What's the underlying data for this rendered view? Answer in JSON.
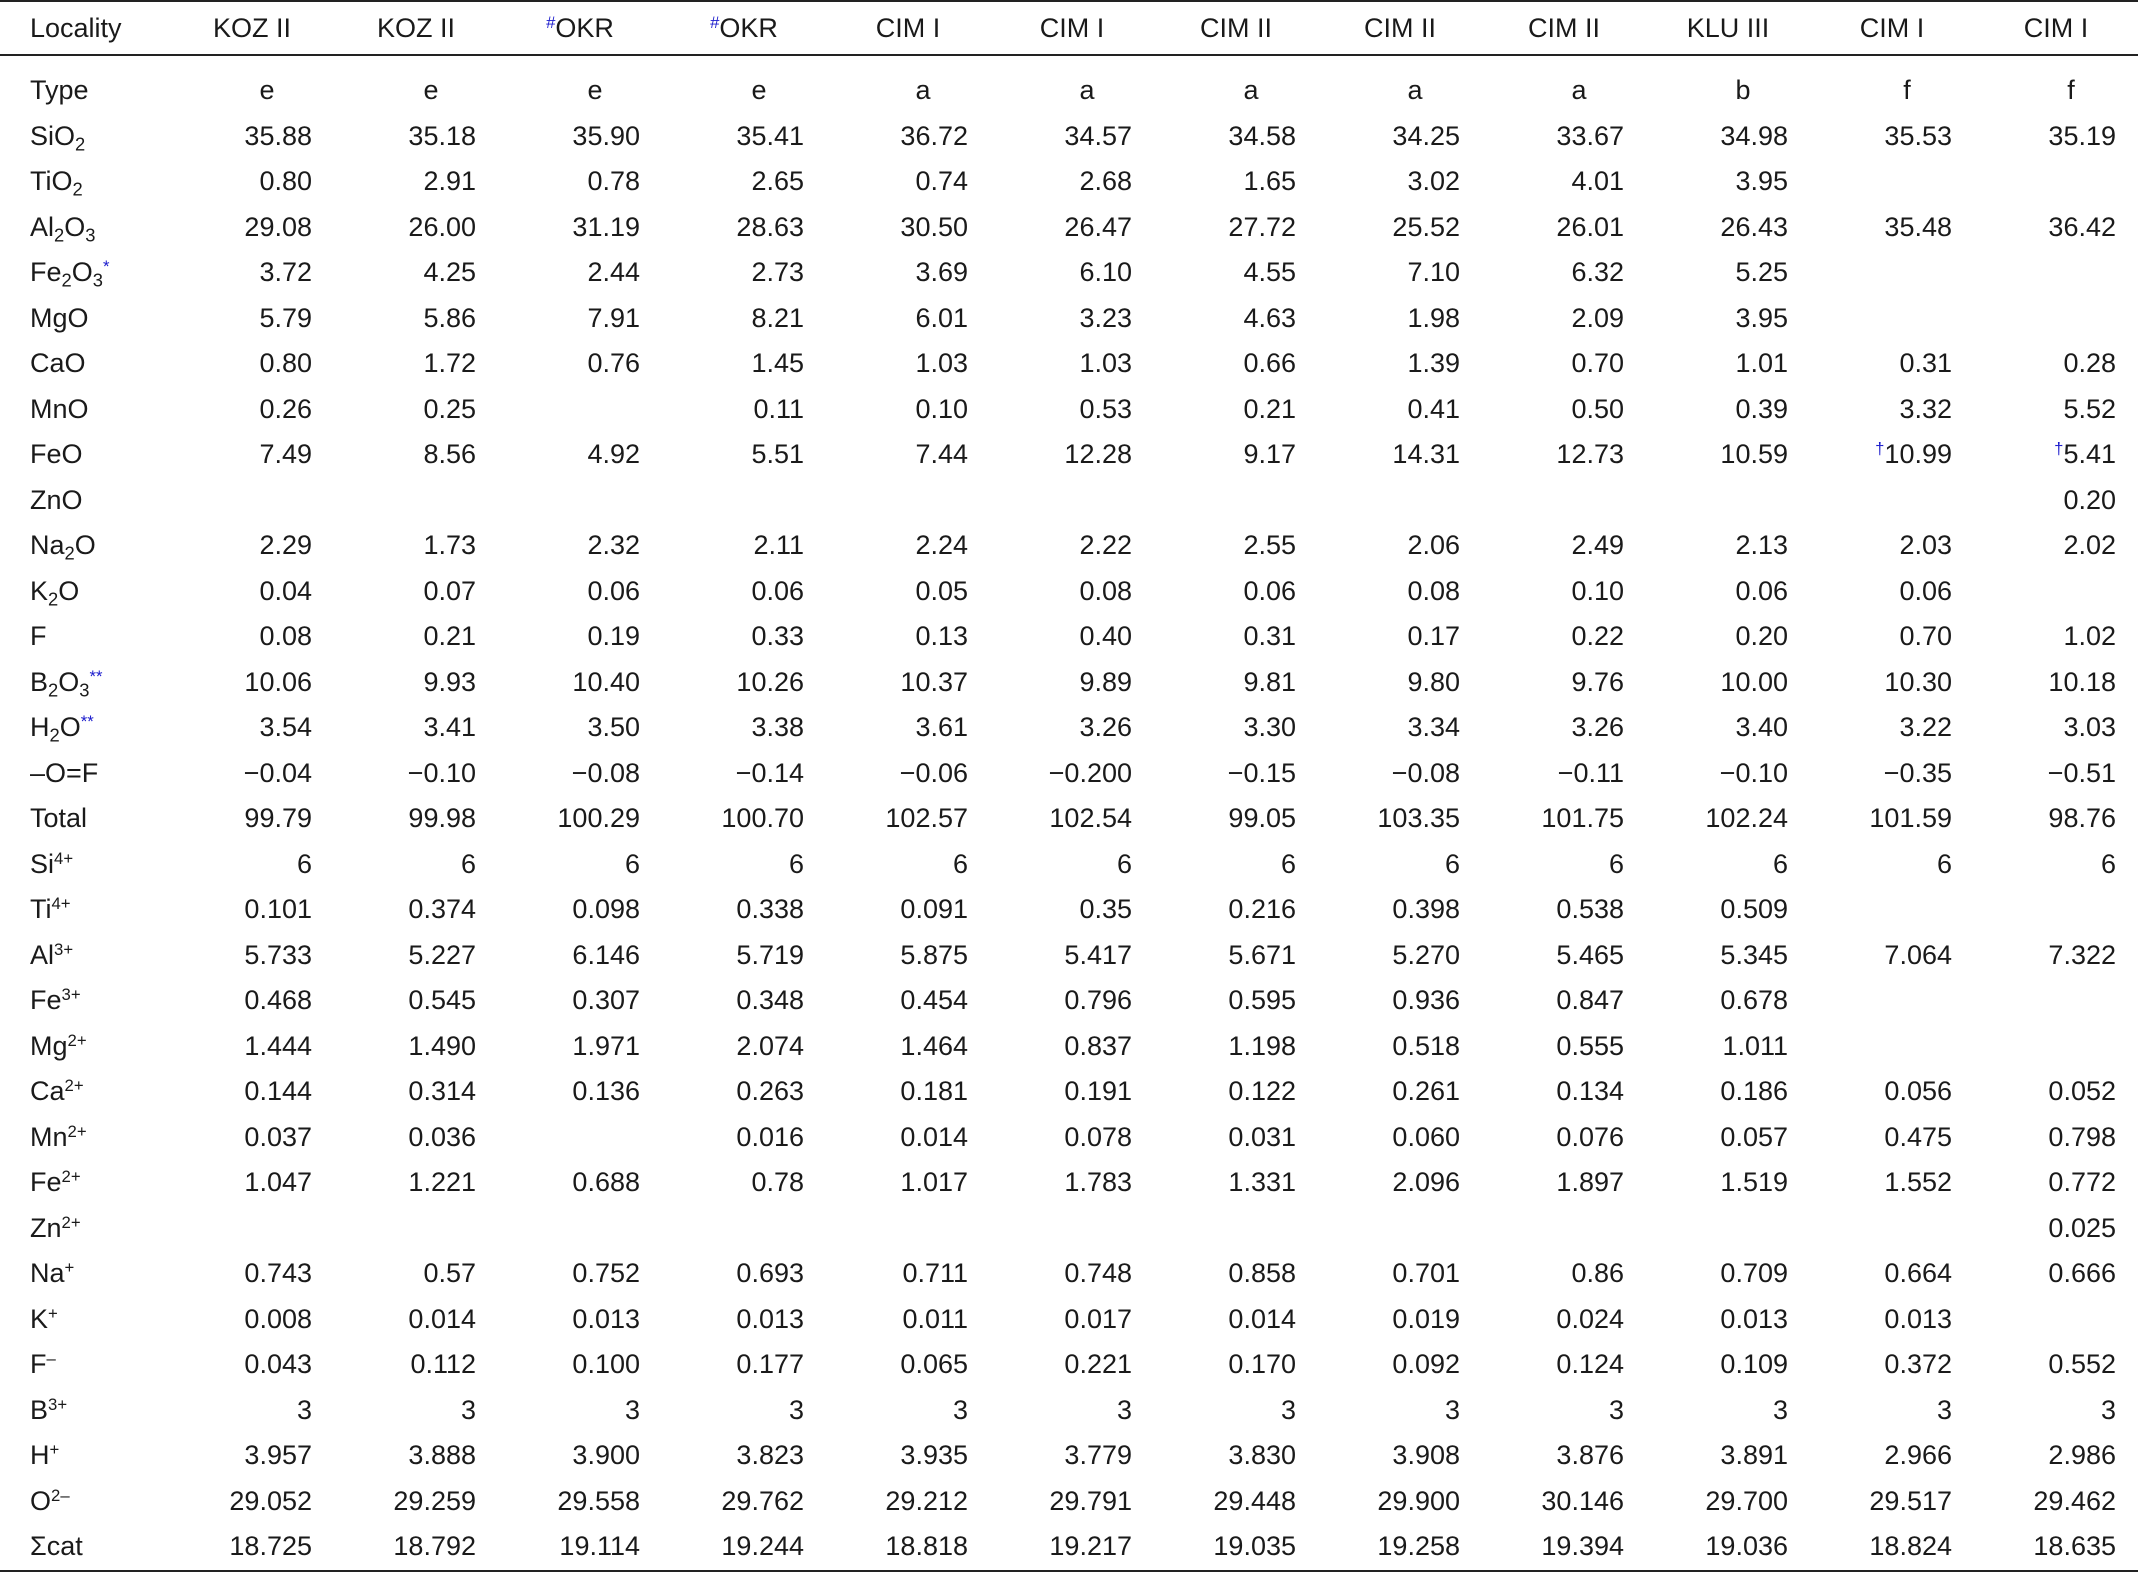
{
  "table": {
    "header_label": "Locality",
    "header_marker": "#",
    "value_marker": "†",
    "columns": [
      {
        "name": "KOZ II",
        "marked": false
      },
      {
        "name": "KOZ II",
        "marked": false
      },
      {
        "name": "OKR",
        "marked": true
      },
      {
        "name": "OKR",
        "marked": true
      },
      {
        "name": "CIM I",
        "marked": false
      },
      {
        "name": "CIM I",
        "marked": false
      },
      {
        "name": "CIM II",
        "marked": false
      },
      {
        "name": "CIM II",
        "marked": false
      },
      {
        "name": "CIM II",
        "marked": false
      },
      {
        "name": "KLU III",
        "marked": false
      },
      {
        "name": "CIM I",
        "marked": false
      },
      {
        "name": "CIM I",
        "marked": false
      }
    ],
    "rows": [
      {
        "label": [
          {
            "t": "Type"
          }
        ],
        "type": true,
        "values": [
          "e",
          "e",
          "e",
          "e",
          "a",
          "a",
          "a",
          "a",
          "a",
          "b",
          "f",
          "f"
        ]
      },
      {
        "label": [
          {
            "t": "SiO"
          },
          {
            "sub": "2"
          }
        ],
        "values": [
          "35.88",
          "35.18",
          "35.90",
          "35.41",
          "36.72",
          "34.57",
          "34.58",
          "34.25",
          "33.67",
          "34.98",
          "35.53",
          "35.19"
        ]
      },
      {
        "label": [
          {
            "t": "TiO"
          },
          {
            "sub": "2"
          }
        ],
        "values": [
          "0.80",
          "2.91",
          "0.78",
          "2.65",
          "0.74",
          "2.68",
          "1.65",
          "3.02",
          "4.01",
          "3.95",
          "",
          ""
        ]
      },
      {
        "label": [
          {
            "t": "Al"
          },
          {
            "sub": "2"
          },
          {
            "t": "O"
          },
          {
            "sub": "3"
          }
        ],
        "values": [
          "29.08",
          "26.00",
          "31.19",
          "28.63",
          "30.50",
          "26.47",
          "27.72",
          "25.52",
          "26.01",
          "26.43",
          "35.48",
          "36.42"
        ]
      },
      {
        "label": [
          {
            "t": "Fe"
          },
          {
            "sub": "2"
          },
          {
            "t": "O"
          },
          {
            "sub": "3"
          },
          {
            "mark": "*"
          }
        ],
        "values": [
          "3.72",
          "4.25",
          "2.44",
          "2.73",
          "3.69",
          "6.10",
          "4.55",
          "7.10",
          "6.32",
          "5.25",
          "",
          ""
        ]
      },
      {
        "label": [
          {
            "t": "MgO"
          }
        ],
        "values": [
          "5.79",
          "5.86",
          "7.91",
          "8.21",
          "6.01",
          "3.23",
          "4.63",
          "1.98",
          "2.09",
          "3.95",
          "",
          ""
        ]
      },
      {
        "label": [
          {
            "t": "CaO"
          }
        ],
        "values": [
          "0.80",
          "1.72",
          "0.76",
          "1.45",
          "1.03",
          "1.03",
          "0.66",
          "1.39",
          "0.70",
          "1.01",
          "0.31",
          "0.28"
        ]
      },
      {
        "label": [
          {
            "t": "MnO"
          }
        ],
        "values": [
          "0.26",
          "0.25",
          "",
          "0.11",
          "0.10",
          "0.53",
          "0.21",
          "0.41",
          "0.50",
          "0.39",
          "3.32",
          "5.52"
        ]
      },
      {
        "label": [
          {
            "t": "FeO"
          }
        ],
        "values": [
          "7.49",
          "8.56",
          "4.92",
          "5.51",
          "7.44",
          "12.28",
          "9.17",
          "14.31",
          "12.73",
          "10.59",
          "10.99",
          "5.41"
        ],
        "marked_cols": [
          10,
          11
        ]
      },
      {
        "label": [
          {
            "t": "ZnO"
          }
        ],
        "values": [
          "",
          "",
          "",
          "",
          "",
          "",
          "",
          "",
          "",
          "",
          "",
          "0.20"
        ]
      },
      {
        "label": [
          {
            "t": "Na"
          },
          {
            "sub": "2"
          },
          {
            "t": "O"
          }
        ],
        "values": [
          "2.29",
          "1.73",
          "2.32",
          "2.11",
          "2.24",
          "2.22",
          "2.55",
          "2.06",
          "2.49",
          "2.13",
          "2.03",
          "2.02"
        ]
      },
      {
        "label": [
          {
            "t": "K"
          },
          {
            "sub": "2"
          },
          {
            "t": "O"
          }
        ],
        "values": [
          "0.04",
          "0.07",
          "0.06",
          "0.06",
          "0.05",
          "0.08",
          "0.06",
          "0.08",
          "0.10",
          "0.06",
          "0.06",
          ""
        ]
      },
      {
        "label": [
          {
            "t": "F"
          }
        ],
        "values": [
          "0.08",
          "0.21",
          "0.19",
          "0.33",
          "0.13",
          "0.40",
          "0.31",
          "0.17",
          "0.22",
          "0.20",
          "0.70",
          "1.02"
        ]
      },
      {
        "label": [
          {
            "t": "B"
          },
          {
            "sub": "2"
          },
          {
            "t": "O"
          },
          {
            "sub": "3"
          },
          {
            "mark": "**"
          }
        ],
        "values": [
          "10.06",
          "9.93",
          "10.40",
          "10.26",
          "10.37",
          "9.89",
          "9.81",
          "9.80",
          "9.76",
          "10.00",
          "10.30",
          "10.18"
        ]
      },
      {
        "label": [
          {
            "t": "H"
          },
          {
            "sub": "2"
          },
          {
            "t": "O"
          },
          {
            "mark": "**"
          }
        ],
        "values": [
          "3.54",
          "3.41",
          "3.50",
          "3.38",
          "3.61",
          "3.26",
          "3.30",
          "3.34",
          "3.26",
          "3.40",
          "3.22",
          "3.03"
        ]
      },
      {
        "label": [
          {
            "t": "–O=F"
          }
        ],
        "values": [
          "−0.04",
          "−0.10",
          "−0.08",
          "−0.14",
          "−0.06",
          "−0.200",
          "−0.15",
          "−0.08",
          "−0.11",
          "−0.10",
          "−0.35",
          "−0.51"
        ]
      },
      {
        "label": [
          {
            "t": "Total"
          }
        ],
        "values": [
          "99.79",
          "99.98",
          "100.29",
          "100.70",
          "102.57",
          "102.54",
          "99.05",
          "103.35",
          "101.75",
          "102.24",
          "101.59",
          "98.76"
        ]
      },
      {
        "label": [
          {
            "t": "Si"
          },
          {
            "sup": "4+"
          }
        ],
        "values": [
          "6",
          "6",
          "6",
          "6",
          "6",
          "6",
          "6",
          "6",
          "6",
          "6",
          "6",
          "6"
        ]
      },
      {
        "label": [
          {
            "t": "Ti"
          },
          {
            "sup": "4+"
          }
        ],
        "values": [
          "0.101",
          "0.374",
          "0.098",
          "0.338",
          "0.091",
          "0.35",
          "0.216",
          "0.398",
          "0.538",
          "0.509",
          "",
          ""
        ]
      },
      {
        "label": [
          {
            "t": "Al"
          },
          {
            "sup": "3+"
          }
        ],
        "values": [
          "5.733",
          "5.227",
          "6.146",
          "5.719",
          "5.875",
          "5.417",
          "5.671",
          "5.270",
          "5.465",
          "5.345",
          "7.064",
          "7.322"
        ]
      },
      {
        "label": [
          {
            "t": "Fe"
          },
          {
            "sup": "3+"
          }
        ],
        "values": [
          "0.468",
          "0.545",
          "0.307",
          "0.348",
          "0.454",
          "0.796",
          "0.595",
          "0.936",
          "0.847",
          "0.678",
          "",
          ""
        ]
      },
      {
        "label": [
          {
            "t": "Mg"
          },
          {
            "sup": "2+"
          }
        ],
        "values": [
          "1.444",
          "1.490",
          "1.971",
          "2.074",
          "1.464",
          "0.837",
          "1.198",
          "0.518",
          "0.555",
          "1.011",
          "",
          ""
        ]
      },
      {
        "label": [
          {
            "t": "Ca"
          },
          {
            "sup": "2+"
          }
        ],
        "values": [
          "0.144",
          "0.314",
          "0.136",
          "0.263",
          "0.181",
          "0.191",
          "0.122",
          "0.261",
          "0.134",
          "0.186",
          "0.056",
          "0.052"
        ]
      },
      {
        "label": [
          {
            "t": "Mn"
          },
          {
            "sup": "2+"
          }
        ],
        "values": [
          "0.037",
          "0.036",
          "",
          "0.016",
          "0.014",
          "0.078",
          "0.031",
          "0.060",
          "0.076",
          "0.057",
          "0.475",
          "0.798"
        ]
      },
      {
        "label": [
          {
            "t": "Fe"
          },
          {
            "sup": "2+"
          }
        ],
        "values": [
          "1.047",
          "1.221",
          "0.688",
          "0.78",
          "1.017",
          "1.783",
          "1.331",
          "2.096",
          "1.897",
          "1.519",
          "1.552",
          "0.772"
        ]
      },
      {
        "label": [
          {
            "t": "Zn"
          },
          {
            "sup": "2+"
          }
        ],
        "values": [
          "",
          "",
          "",
          "",
          "",
          "",
          "",
          "",
          "",
          "",
          "",
          "0.025"
        ]
      },
      {
        "label": [
          {
            "t": "Na"
          },
          {
            "sup": "+"
          }
        ],
        "values": [
          "0.743",
          "0.57",
          "0.752",
          "0.693",
          "0.711",
          "0.748",
          "0.858",
          "0.701",
          "0.86",
          "0.709",
          "0.664",
          "0.666"
        ]
      },
      {
        "label": [
          {
            "t": "K"
          },
          {
            "sup": "+"
          }
        ],
        "values": [
          "0.008",
          "0.014",
          "0.013",
          "0.013",
          "0.011",
          "0.017",
          "0.014",
          "0.019",
          "0.024",
          "0.013",
          "0.013",
          ""
        ]
      },
      {
        "label": [
          {
            "t": "F"
          },
          {
            "sup": "–"
          }
        ],
        "values": [
          "0.043",
          "0.112",
          "0.100",
          "0.177",
          "0.065",
          "0.221",
          "0.170",
          "0.092",
          "0.124",
          "0.109",
          "0.372",
          "0.552"
        ]
      },
      {
        "label": [
          {
            "t": "B"
          },
          {
            "sup": "3+"
          }
        ],
        "values": [
          "3",
          "3",
          "3",
          "3",
          "3",
          "3",
          "3",
          "3",
          "3",
          "3",
          "3",
          "3"
        ]
      },
      {
        "label": [
          {
            "t": "H"
          },
          {
            "sup": "+"
          }
        ],
        "values": [
          "3.957",
          "3.888",
          "3.900",
          "3.823",
          "3.935",
          "3.779",
          "3.830",
          "3.908",
          "3.876",
          "3.891",
          "2.966",
          "2.986"
        ]
      },
      {
        "label": [
          {
            "t": "O"
          },
          {
            "sup": "2–"
          }
        ],
        "values": [
          "29.052",
          "29.259",
          "29.558",
          "29.762",
          "29.212",
          "29.791",
          "29.448",
          "29.900",
          "30.146",
          "29.700",
          "29.517",
          "29.462"
        ]
      },
      {
        "label": [
          {
            "t": "Σcat"
          }
        ],
        "values": [
          "18.725",
          "18.792",
          "19.114",
          "19.244",
          "18.818",
          "19.217",
          "19.035",
          "19.258",
          "19.394",
          "19.036",
          "18.824",
          "18.635"
        ]
      }
    ]
  },
  "colors": {
    "text": "#1a1a1a",
    "marker": "#1a1acc",
    "rule": "#222222"
  }
}
